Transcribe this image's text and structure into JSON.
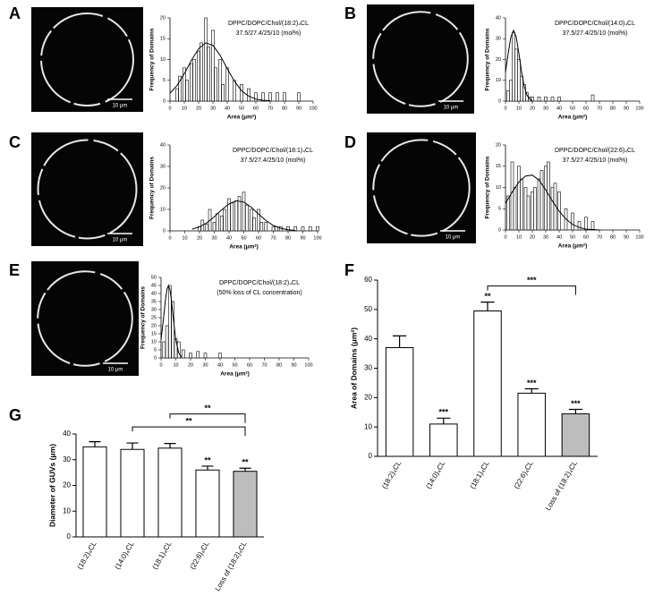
{
  "chart_data": [
    {
      "type": "histogram",
      "panel": "A",
      "scale_bar": "10 μm",
      "title": "DPPC/DOPC/Chol/(18:2)₄CL",
      "subtitle": "37.5/27.4/25/10 (mol%)",
      "x_label": "Area (μm²)",
      "y_label": "Frequency of Domains",
      "x": [
        5,
        7,
        10,
        12,
        15,
        17,
        20,
        22,
        25,
        27,
        30,
        32,
        35,
        37,
        40,
        45,
        50,
        55,
        60,
        65,
        70,
        75,
        80,
        90
      ],
      "values": [
        3,
        6,
        8,
        5,
        9,
        10,
        12,
        14,
        20,
        13,
        17,
        8,
        10,
        4,
        8,
        5,
        4,
        3,
        2,
        2,
        2,
        2,
        2,
        2
      ],
      "fit_x": [
        0,
        5,
        10,
        15,
        20,
        25,
        30,
        35,
        40,
        45,
        50,
        55,
        60,
        65,
        70
      ],
      "fit_values": [
        1.9,
        3.8,
        6.6,
        9.8,
        12.6,
        14,
        13.4,
        11,
        7.8,
        4.8,
        2.5,
        1.2,
        0.5,
        0.2,
        0.1
      ],
      "xlim": [
        0,
        100
      ],
      "xticks": [
        0,
        10,
        20,
        30,
        40,
        50,
        60,
        70,
        80,
        90,
        100
      ],
      "ylim": [
        0,
        20
      ],
      "yticks": [
        0,
        5,
        10,
        15,
        20
      ]
    },
    {
      "type": "histogram",
      "panel": "B",
      "scale_bar": "10 μm",
      "title": "DPPC/DOPC/Chol/(14:0)₄CL",
      "subtitle": "37.5/27.4/25/10 (mol%)",
      "x_label": "Area (μm²)",
      "y_label": "Frequency of Domains",
      "x": [
        2,
        4,
        6,
        8,
        10,
        12,
        14,
        16,
        18,
        20,
        25,
        30,
        35,
        40,
        65
      ],
      "values": [
        5,
        10,
        33,
        25,
        20,
        12,
        8,
        4,
        2,
        2,
        2,
        2,
        2,
        2,
        3
      ],
      "fit_x": [
        0,
        2,
        4,
        6,
        8,
        10,
        12,
        14,
        16,
        18,
        20
      ],
      "fit_values": [
        14,
        22.9,
        30.8,
        34,
        30.8,
        22.9,
        14,
        7,
        2.9,
        1,
        0.3
      ],
      "xlim": [
        0,
        100
      ],
      "xticks": [
        0,
        10,
        20,
        30,
        40,
        50,
        60,
        70,
        80,
        90,
        100
      ],
      "ylim": [
        0,
        40
      ],
      "yticks": [
        0,
        10,
        20,
        30,
        40
      ]
    },
    {
      "type": "histogram",
      "panel": "C",
      "scale_bar": "10 μm",
      "title": "DPPC/DOPC/Chol/(18:1)₄CL",
      "subtitle": "37.5/27.4/25/10 (mol%)",
      "x_label": "Area (μm²)",
      "y_label": "Frequency of Domains",
      "x": [
        20,
        22,
        25,
        27,
        30,
        32,
        35,
        37,
        40,
        42,
        45,
        47,
        50,
        52,
        55,
        57,
        60,
        62,
        65,
        70,
        72,
        75,
        80,
        85,
        90,
        95,
        100
      ],
      "values": [
        2,
        5,
        3,
        10,
        4,
        8,
        7,
        10,
        15,
        13,
        14,
        16,
        18,
        12,
        10,
        6,
        10,
        4,
        4,
        2,
        2,
        2,
        2,
        2,
        2,
        2,
        2
      ],
      "fit_x": [
        15,
        20,
        25,
        30,
        35,
        40,
        45,
        50,
        55,
        60,
        65,
        70,
        75,
        80,
        85
      ],
      "fit_values": [
        0.8,
        1.9,
        3.8,
        6.6,
        9.8,
        12.6,
        14,
        13.4,
        11,
        7.8,
        4.8,
        2.5,
        1.2,
        0.5,
        0.2
      ],
      "xlim": [
        0,
        100
      ],
      "xticks": [
        0,
        10,
        20,
        30,
        40,
        50,
        60,
        70,
        80,
        90,
        100
      ],
      "ylim": [
        0,
        40
      ],
      "yticks": [
        0,
        10,
        20,
        30,
        40
      ]
    },
    {
      "type": "histogram",
      "panel": "D",
      "scale_bar": "10 μm",
      "title": "DPPC/DOPC/Chol/(22:6)₄CL",
      "subtitle": "37.5/27.4/25/10 (mol%)",
      "x_label": "Area (μm²)",
      "y_label": "Frequency of Domains",
      "x": [
        2,
        5,
        7,
        10,
        12,
        15,
        17,
        20,
        22,
        25,
        27,
        30,
        32,
        35,
        37,
        40,
        45,
        50,
        55,
        60,
        65
      ],
      "values": [
        8,
        16,
        10,
        15,
        12,
        10,
        8,
        9,
        10,
        12,
        14,
        15,
        16,
        10,
        11,
        9,
        5,
        4,
        2,
        3,
        2
      ],
      "fit_x": [
        0,
        5,
        10,
        15,
        20,
        25,
        30,
        35,
        40,
        45,
        50,
        55,
        60,
        65,
        70
      ],
      "fit_values": [
        6.3,
        8.9,
        11.3,
        12.7,
        12.9,
        11.7,
        9.4,
        6.8,
        4.4,
        2.6,
        1.3,
        0.6,
        0.2,
        0.1,
        0
      ],
      "xlim": [
        0,
        100
      ],
      "xticks": [
        0,
        10,
        20,
        30,
        40,
        50,
        60,
        70,
        80,
        90,
        100
      ],
      "ylim": [
        0,
        20
      ],
      "yticks": [
        0,
        5,
        10,
        15,
        20
      ]
    },
    {
      "type": "histogram",
      "panel": "E",
      "scale_bar": "10 μm",
      "title": "DPPC/DOPC/Chol/(18:2)₄CL",
      "subtitle": "(50% loss of CL concentration)",
      "x_label": "Area (μm²)",
      "y_label": "Frequency of Domains",
      "x": [
        2,
        4,
        6,
        8,
        10,
        12,
        15,
        20,
        25,
        30,
        40
      ],
      "values": [
        10,
        20,
        45,
        35,
        12,
        10,
        5,
        3,
        4,
        3,
        3
      ],
      "fit_x": [
        0,
        2,
        3,
        4,
        5,
        6,
        7,
        8,
        10,
        12,
        14
      ],
      "fit_values": [
        11.2,
        27.3,
        36,
        42.6,
        45,
        42.6,
        36,
        27.3,
        11.2,
        3,
        0.5
      ],
      "xlim": [
        0,
        100
      ],
      "xticks": [
        0,
        10,
        20,
        30,
        40,
        50,
        60,
        70,
        80,
        90,
        100
      ],
      "ylim": [
        0,
        50
      ],
      "yticks": [
        0,
        5,
        10,
        15,
        20,
        25,
        30,
        35,
        40,
        45,
        50
      ]
    },
    {
      "type": "bar",
      "panel": "F",
      "y_label": "Area of Domains (μm²)",
      "categories": [
        "(18:2)₄CL",
        "(14:0)₄CL",
        "(18:1)₄CL",
        "(22:6)₄CL",
        "Loss of (18:2)₄CL"
      ],
      "values": [
        37,
        11,
        49.5,
        21.5,
        14.5
      ],
      "errors": [
        4,
        2,
        3,
        1.5,
        1.5
      ],
      "colors": [
        "#ffffff",
        "#ffffff",
        "#ffffff",
        "#ffffff",
        "#bdbdbd"
      ],
      "significance": [
        null,
        "***",
        "**",
        "***",
        "***"
      ],
      "brackets": [
        {
          "label": "***",
          "between": [
            2,
            4
          ]
        }
      ],
      "ylim": [
        0,
        60
      ],
      "yticks": [
        0,
        10,
        20,
        30,
        40,
        50,
        60
      ]
    },
    {
      "type": "bar",
      "panel": "G",
      "y_label": "Diameter of GUVs (μm)",
      "categories": [
        "(18:2)₄CL",
        "(14:0)₄CL",
        "(18:1)₄CL",
        "(22:6)₄CL",
        "Loss of (18:2)₄CL"
      ],
      "values": [
        35,
        34,
        34.5,
        26,
        25.5
      ],
      "errors": [
        2,
        2.5,
        1.8,
        1.5,
        1.2
      ],
      "colors": [
        "#ffffff",
        "#ffffff",
        "#ffffff",
        "#ffffff",
        "#bdbdbd"
      ],
      "significance": [
        null,
        null,
        null,
        "**",
        "**"
      ],
      "brackets": [
        {
          "label": "**",
          "between": [
            1,
            4
          ]
        },
        {
          "label": "**",
          "between": [
            2,
            4
          ]
        }
      ],
      "ylim": [
        0,
        40
      ],
      "yticks": [
        0,
        10,
        20,
        30,
        40
      ]
    }
  ]
}
